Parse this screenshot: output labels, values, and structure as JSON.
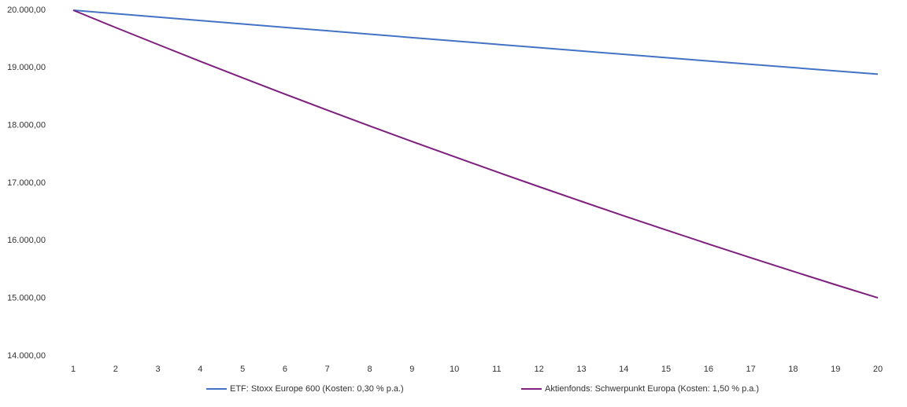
{
  "chart_data": {
    "type": "line",
    "categories": [
      "1",
      "2",
      "3",
      "4",
      "5",
      "6",
      "7",
      "8",
      "9",
      "10",
      "11",
      "12",
      "13",
      "14",
      "15",
      "16",
      "17",
      "18",
      "19",
      "20"
    ],
    "series": [
      {
        "name": "ETF: Stoxx Europe 600 (Kosten: 0,30 % p.a.)",
        "color": "#4472c4",
        "values": [
          20000,
          19940,
          19880,
          19821,
          19761,
          19702,
          19643,
          19584,
          19525,
          19466,
          19408,
          19350,
          19292,
          19234,
          19176,
          19119,
          19061,
          19004,
          18947,
          18890
        ]
      },
      {
        "name": "Aktienfonds: Schwerpunkt Europa (Kosten: 1,50 % p.a.)",
        "color": "#7f1f7f",
        "values": [
          20000,
          19700,
          19405,
          19113,
          18827,
          18544,
          18266,
          17992,
          17722,
          17457,
          17195,
          16937,
          16683,
          16432,
          16186,
          15943,
          15704,
          15468,
          15236,
          15008
        ]
      }
    ],
    "ylim": [
      14000,
      20000
    ],
    "yticks": [
      {
        "value": 14000,
        "label": "14.000,00"
      },
      {
        "value": 15000,
        "label": "15.000,00"
      },
      {
        "value": 16000,
        "label": "16.000,00"
      },
      {
        "value": 17000,
        "label": "17.000,00"
      },
      {
        "value": 18000,
        "label": "18.000,00"
      },
      {
        "value": 19000,
        "label": "19.000,00"
      },
      {
        "value": 20000,
        "label": "20.000,00"
      }
    ],
    "grid": false,
    "legend": "bottom"
  }
}
